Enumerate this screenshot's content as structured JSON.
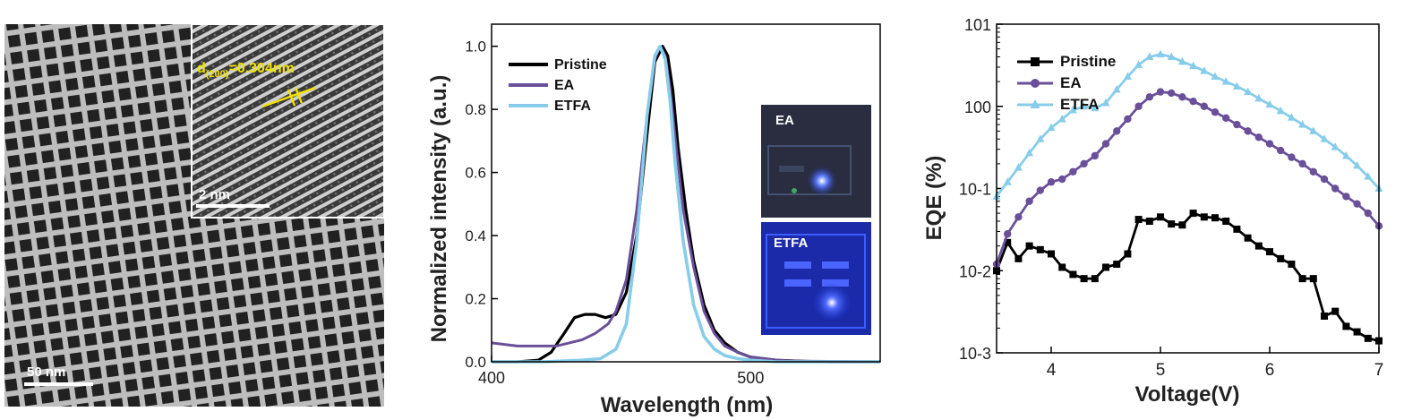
{
  "panel_a": {
    "inset_annotation_main": "d",
    "inset_annotation_sub": "(200)",
    "inset_annotation_rest": "=0.304nm",
    "inset_scale_label": "2 nm",
    "main_scale_label": "50  nm"
  },
  "panel_b_inset": {
    "top_label": "EA",
    "bottom_label": "ETFA"
  },
  "chart_data": [
    {
      "type": "line",
      "xlabel": "Wavelength (nm)",
      "ylabel": "Normalized  intensity (a.u.)",
      "xlim": [
        400,
        550
      ],
      "ylim": [
        0,
        1.07
      ],
      "xticks": [
        "400",
        "500"
      ],
      "yticks": [
        "0.0",
        "0.2",
        "0.4",
        "0.6",
        "0.8",
        "1.0"
      ],
      "legend_position": "top-left",
      "colors": {
        "Pristine": "#000000",
        "EA": "#6a4f99",
        "ETFA": "#87cdea"
      },
      "series": [
        {
          "name": "Pristine",
          "x": [
            400,
            410,
            418,
            423,
            428,
            432,
            436,
            440,
            444,
            448,
            452,
            456,
            460,
            463,
            466,
            468,
            470,
            472,
            475,
            478,
            482,
            486,
            490,
            495,
            500,
            505,
            510,
            520,
            530,
            550
          ],
          "y": [
            0.0,
            0.0,
            0.005,
            0.03,
            0.09,
            0.14,
            0.15,
            0.15,
            0.14,
            0.15,
            0.22,
            0.4,
            0.72,
            0.95,
            1.0,
            0.97,
            0.86,
            0.68,
            0.48,
            0.32,
            0.18,
            0.1,
            0.06,
            0.03,
            0.015,
            0.01,
            0.005,
            0.002,
            0.0,
            0.0
          ]
        },
        {
          "name": "EA",
          "x": [
            400,
            410,
            418,
            425,
            430,
            435,
            440,
            445,
            448,
            452,
            456,
            460,
            463,
            465,
            467,
            469,
            471,
            474,
            478,
            482,
            486,
            490,
            495,
            500,
            510,
            520,
            550
          ],
          "y": [
            0.06,
            0.05,
            0.05,
            0.05,
            0.06,
            0.07,
            0.09,
            0.12,
            0.16,
            0.26,
            0.48,
            0.78,
            0.96,
            1.0,
            0.97,
            0.86,
            0.7,
            0.48,
            0.3,
            0.16,
            0.09,
            0.05,
            0.03,
            0.015,
            0.005,
            0.002,
            0.0
          ]
        },
        {
          "name": "ETFA",
          "x": [
            400,
            420,
            435,
            442,
            448,
            452,
            456,
            460,
            463,
            465,
            467,
            469,
            471,
            474,
            478,
            482,
            486,
            490,
            495,
            500,
            510,
            550
          ],
          "y": [
            0.0,
            0.0,
            0.005,
            0.01,
            0.04,
            0.12,
            0.38,
            0.78,
            0.97,
            1.0,
            0.96,
            0.82,
            0.62,
            0.38,
            0.18,
            0.08,
            0.04,
            0.02,
            0.01,
            0.005,
            0.0,
            0.0
          ]
        }
      ]
    },
    {
      "type": "line",
      "xlabel": "Voltage(V)",
      "ylabel": "EQE (%)",
      "xlim": [
        3.5,
        7.0
      ],
      "ylim": [
        0.001,
        10
      ],
      "log_scale_y": true,
      "xticks": [
        "4",
        "5",
        "6",
        "7"
      ],
      "yticks": [
        "10-3",
        "10-2",
        "10-1",
        "100",
        "101"
      ],
      "legend_position": "top-left",
      "colors": {
        "Pristine": "#000000",
        "EA": "#6a4f99",
        "ETFA": "#87cdea"
      },
      "series": [
        {
          "name": "Pristine",
          "x": [
            3.5,
            3.6,
            3.7,
            3.8,
            3.9,
            4.0,
            4.1,
            4.2,
            4.3,
            4.4,
            4.5,
            4.6,
            4.7,
            4.8,
            4.9,
            5.0,
            5.1,
            5.2,
            5.3,
            5.4,
            5.5,
            5.6,
            5.7,
            5.8,
            5.9,
            6.0,
            6.1,
            6.2,
            6.3,
            6.4,
            6.5,
            6.6,
            6.7,
            6.8,
            6.9,
            7.0
          ],
          "y": [
            0.01,
            0.022,
            0.014,
            0.02,
            0.018,
            0.016,
            0.011,
            0.009,
            0.008,
            0.008,
            0.011,
            0.012,
            0.016,
            0.042,
            0.04,
            0.045,
            0.037,
            0.036,
            0.05,
            0.045,
            0.044,
            0.04,
            0.032,
            0.025,
            0.02,
            0.017,
            0.014,
            0.012,
            0.008,
            0.008,
            0.0028,
            0.0032,
            0.0021,
            0.0018,
            0.0015,
            0.0014
          ]
        },
        {
          "name": "EA",
          "x": [
            3.5,
            3.6,
            3.7,
            3.8,
            3.9,
            4.0,
            4.1,
            4.2,
            4.3,
            4.4,
            4.5,
            4.6,
            4.7,
            4.8,
            4.9,
            5.0,
            5.1,
            5.2,
            5.3,
            5.4,
            5.5,
            5.6,
            5.7,
            5.8,
            5.9,
            6.0,
            6.1,
            6.2,
            6.3,
            6.4,
            6.5,
            6.6,
            6.7,
            6.8,
            6.9,
            7.0
          ],
          "y": [
            0.012,
            0.028,
            0.045,
            0.07,
            0.095,
            0.12,
            0.13,
            0.16,
            0.2,
            0.25,
            0.35,
            0.5,
            0.7,
            1.0,
            1.3,
            1.5,
            1.45,
            1.3,
            1.15,
            1.0,
            0.85,
            0.72,
            0.6,
            0.5,
            0.42,
            0.35,
            0.29,
            0.24,
            0.2,
            0.16,
            0.13,
            0.1,
            0.08,
            0.065,
            0.05,
            0.035
          ]
        },
        {
          "name": "ETFA",
          "x": [
            3.5,
            3.6,
            3.7,
            3.8,
            3.9,
            4.0,
            4.1,
            4.2,
            4.3,
            4.4,
            4.5,
            4.6,
            4.7,
            4.8,
            4.9,
            5.0,
            5.1,
            5.2,
            5.3,
            5.4,
            5.5,
            5.6,
            5.7,
            5.8,
            5.9,
            6.0,
            6.1,
            6.2,
            6.3,
            6.4,
            6.5,
            6.6,
            6.7,
            6.8,
            6.9,
            7.0
          ],
          "y": [
            0.08,
            0.12,
            0.18,
            0.27,
            0.4,
            0.55,
            0.7,
            0.9,
            1.0,
            0.95,
            1.1,
            1.6,
            2.3,
            3.2,
            4.0,
            4.3,
            4.0,
            3.5,
            3.1,
            2.7,
            2.3,
            2.0,
            1.75,
            1.5,
            1.25,
            1.05,
            0.88,
            0.73,
            0.6,
            0.5,
            0.4,
            0.32,
            0.25,
            0.19,
            0.14,
            0.1
          ]
        }
      ]
    }
  ]
}
